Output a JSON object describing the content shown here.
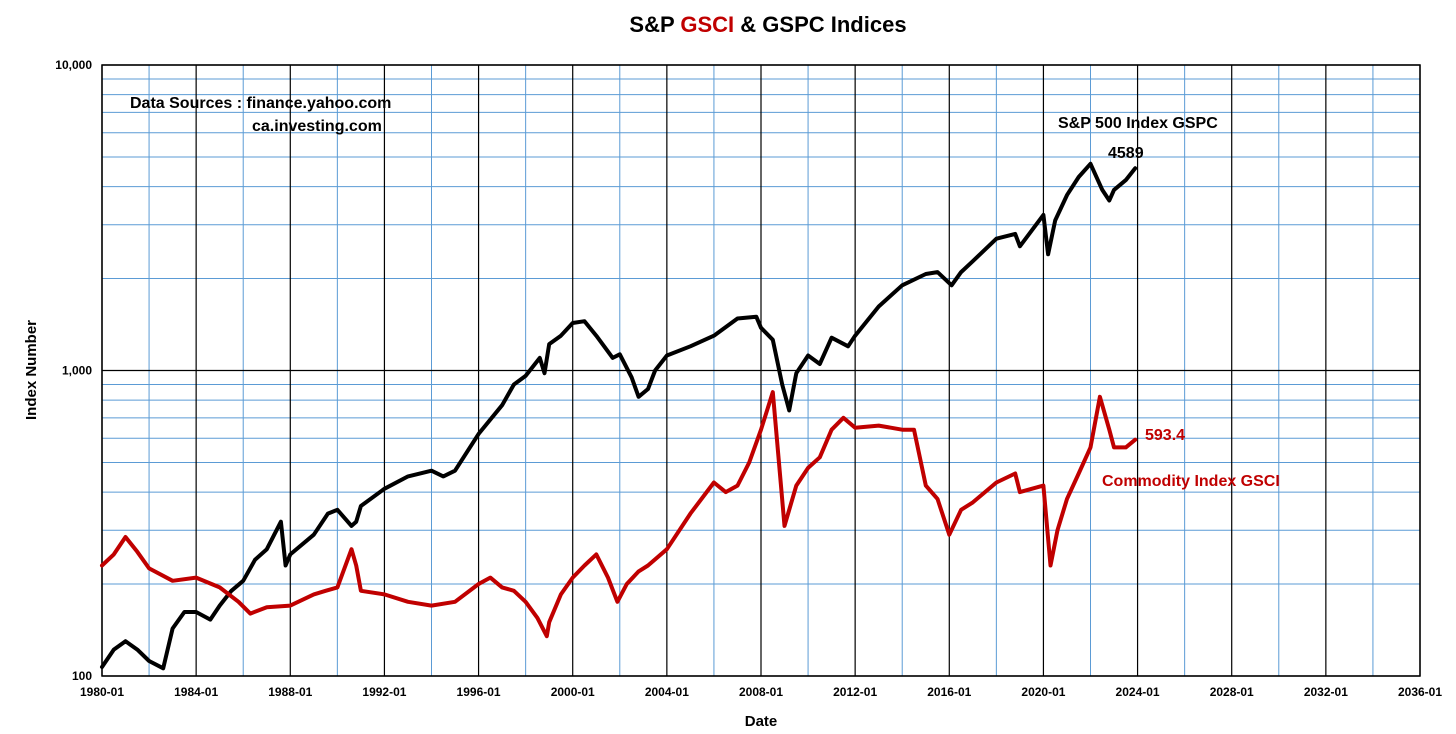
{
  "title": {
    "part1": "S&P ",
    "part2": "GSCI",
    "part3": " & GSPC Indices"
  },
  "colors": {
    "gspc": "#000000",
    "gsci": "#c00000",
    "major_grid": "#000000",
    "minor_grid": "#5b9bd5"
  },
  "chart_data": {
    "type": "line",
    "title": "S&P GSCI & GSPC Indices",
    "xlabel": "Date",
    "ylabel": "Index Number",
    "yscale": "log",
    "ylim": [
      100,
      10000
    ],
    "xlim": [
      "1980-01",
      "2036-01"
    ],
    "grid": true,
    "x_ticks": [
      "1980-01",
      "1984-01",
      "1988-01",
      "1992-01",
      "1996-01",
      "2000-01",
      "2004-01",
      "2008-01",
      "2012-01",
      "2016-01",
      "2020-01",
      "2024-01",
      "2028-01",
      "2032-01",
      "2036-01"
    ],
    "y_ticks": [
      "100",
      "1,000",
      "10,000"
    ],
    "annotations": {
      "sources_line1": "Data Sources : finance.yahoo.com",
      "sources_line2": "ca.investing.com",
      "gspc_label": "S&P 500 Index GSPC",
      "gspc_last": "4589",
      "gsci_label": "Commodity Index GSCI",
      "gsci_last": "593.4"
    },
    "series": [
      {
        "name": "S&P 500 Index GSPC",
        "x": [
          1980.0,
          1980.5,
          1981.0,
          1981.5,
          1982.0,
          1982.6,
          1983.0,
          1983.5,
          1984.0,
          1984.6,
          1985.0,
          1985.5,
          1986.0,
          1986.5,
          1987.0,
          1987.6,
          1987.8,
          1988.0,
          1989.0,
          1989.6,
          1990.0,
          1990.6,
          1990.8,
          1991.0,
          1992.0,
          1993.0,
          1994.0,
          1994.5,
          1995.0,
          1996.0,
          1997.0,
          1997.5,
          1998.0,
          1998.6,
          1998.8,
          1999.0,
          1999.5,
          2000.0,
          2000.5,
          2001.0,
          2001.7,
          2002.0,
          2002.5,
          2002.8,
          2003.2,
          2003.5,
          2004.0,
          2005.0,
          2006.0,
          2007.0,
          2007.8,
          2008.0,
          2008.5,
          2008.9,
          2009.2,
          2009.5,
          2010.0,
          2010.5,
          2011.0,
          2011.7,
          2012.0,
          2013.0,
          2014.0,
          2015.0,
          2015.5,
          2016.1,
          2016.5,
          2017.0,
          2018.0,
          2018.8,
          2019.0,
          2020.0,
          2020.2,
          2020.5,
          2021.0,
          2021.5,
          2022.0,
          2022.5,
          2022.8,
          2023.0,
          2023.5,
          2023.9
        ],
        "values": [
          107,
          122,
          130,
          122,
          112,
          106,
          143,
          162,
          162,
          153,
          170,
          190,
          205,
          240,
          260,
          320,
          230,
          250,
          290,
          340,
          350,
          310,
          320,
          360,
          410,
          450,
          470,
          450,
          470,
          620,
          770,
          900,
          960,
          1100,
          980,
          1220,
          1300,
          1430,
          1450,
          1300,
          1100,
          1130,
          950,
          820,
          870,
          1000,
          1120,
          1200,
          1300,
          1480,
          1500,
          1380,
          1260,
          900,
          740,
          980,
          1120,
          1050,
          1280,
          1200,
          1300,
          1620,
          1900,
          2070,
          2100,
          1900,
          2100,
          2280,
          2700,
          2800,
          2550,
          3230,
          2400,
          3100,
          3750,
          4300,
          4750,
          3900,
          3600,
          3900,
          4200,
          4589
        ]
      },
      {
        "name": "Commodity Index GSCI",
        "x": [
          1980.0,
          1980.5,
          1981.0,
          1981.5,
          1982.0,
          1983.0,
          1984.0,
          1985.0,
          1985.8,
          1986.3,
          1987.0,
          1988.0,
          1989.0,
          1989.5,
          1990.0,
          1990.6,
          1990.8,
          1991.0,
          1992.0,
          1993.0,
          1994.0,
          1995.0,
          1996.0,
          1996.5,
          1997.0,
          1997.5,
          1998.0,
          1998.5,
          1998.9,
          1999.0,
          1999.5,
          2000.0,
          2000.5,
          2001.0,
          2001.5,
          2001.9,
          2002.3,
          2002.8,
          2003.2,
          2004.0,
          2005.0,
          2006.0,
          2006.5,
          2007.0,
          2007.5,
          2008.0,
          2008.5,
          2009.0,
          2009.5,
          2010.0,
          2010.5,
          2011.0,
          2011.5,
          2012.0,
          2013.0,
          2014.0,
          2014.5,
          2015.0,
          2015.5,
          2016.0,
          2016.5,
          2017.0,
          2018.0,
          2018.8,
          2019.0,
          2020.0,
          2020.3,
          2020.6,
          2021.0,
          2021.5,
          2022.0,
          2022.4,
          2022.8,
          2023.0,
          2023.5,
          2023.9
        ],
        "values": [
          230,
          250,
          285,
          255,
          225,
          205,
          210,
          195,
          175,
          160,
          168,
          170,
          185,
          190,
          195,
          260,
          230,
          190,
          185,
          175,
          170,
          175,
          200,
          210,
          195,
          190,
          175,
          155,
          135,
          150,
          185,
          210,
          230,
          250,
          210,
          175,
          200,
          220,
          230,
          260,
          340,
          430,
          400,
          420,
          500,
          640,
          850,
          310,
          420,
          480,
          520,
          640,
          700,
          650,
          660,
          640,
          640,
          420,
          380,
          290,
          350,
          370,
          430,
          460,
          400,
          420,
          230,
          300,
          380,
          460,
          560,
          820,
          640,
          560,
          560,
          593.4
        ]
      }
    ]
  }
}
